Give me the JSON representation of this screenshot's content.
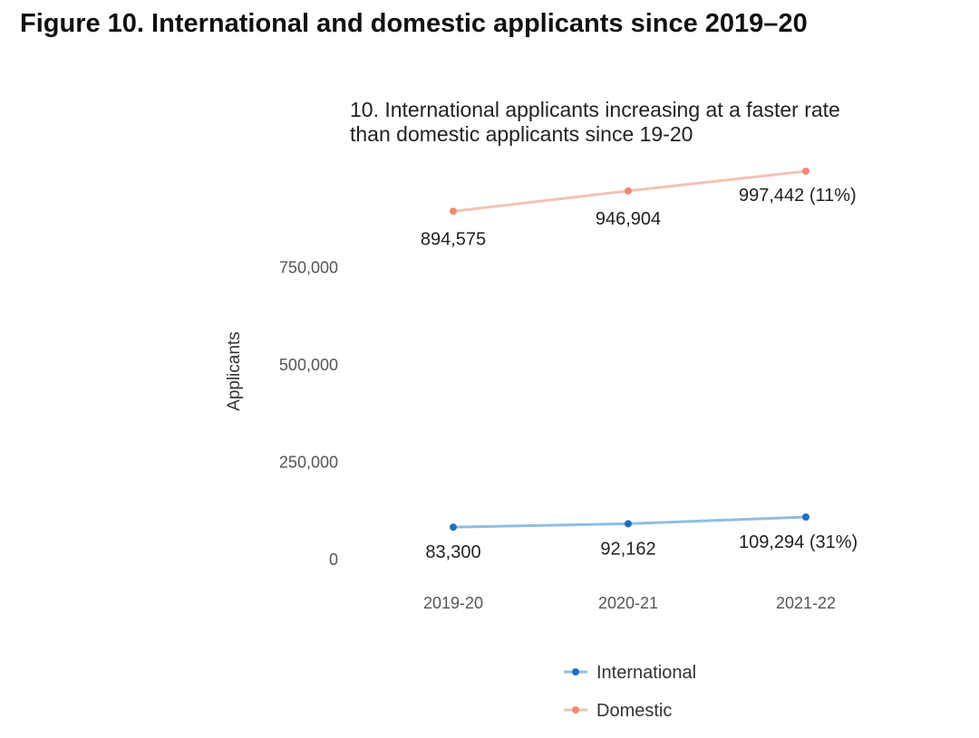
{
  "figure_title": "Figure 10. International and domestic applicants since 2019–20",
  "chart_data": {
    "type": "line",
    "title": "10. International applicants increasing at a faster rate\n than domestic applicants since 19-20",
    "xlabel": "",
    "ylabel": "Applicants",
    "categories": [
      "2019-20",
      "2020-21",
      "2021-22"
    ],
    "yticks": [
      0,
      250000,
      500000,
      750000
    ],
    "ytick_labels": [
      "0",
      "250,000",
      "500,000",
      "750,000"
    ],
    "ylim": [
      0,
      1000000
    ],
    "grid": false,
    "legend_position": "bottom",
    "series": [
      {
        "name": "International",
        "color": "#1f6fbf",
        "line_color": "#8fbde6",
        "values": [
          83300,
          92162,
          109294
        ],
        "labels": [
          "83,300",
          "92,162",
          "109,294 (31%)"
        ]
      },
      {
        "name": "Domestic",
        "color": "#f08a70",
        "line_color": "#f6c1b3",
        "values": [
          894575,
          946904,
          997442
        ],
        "labels": [
          "894,575",
          "946,904",
          "997,442 (11%)"
        ]
      }
    ]
  }
}
